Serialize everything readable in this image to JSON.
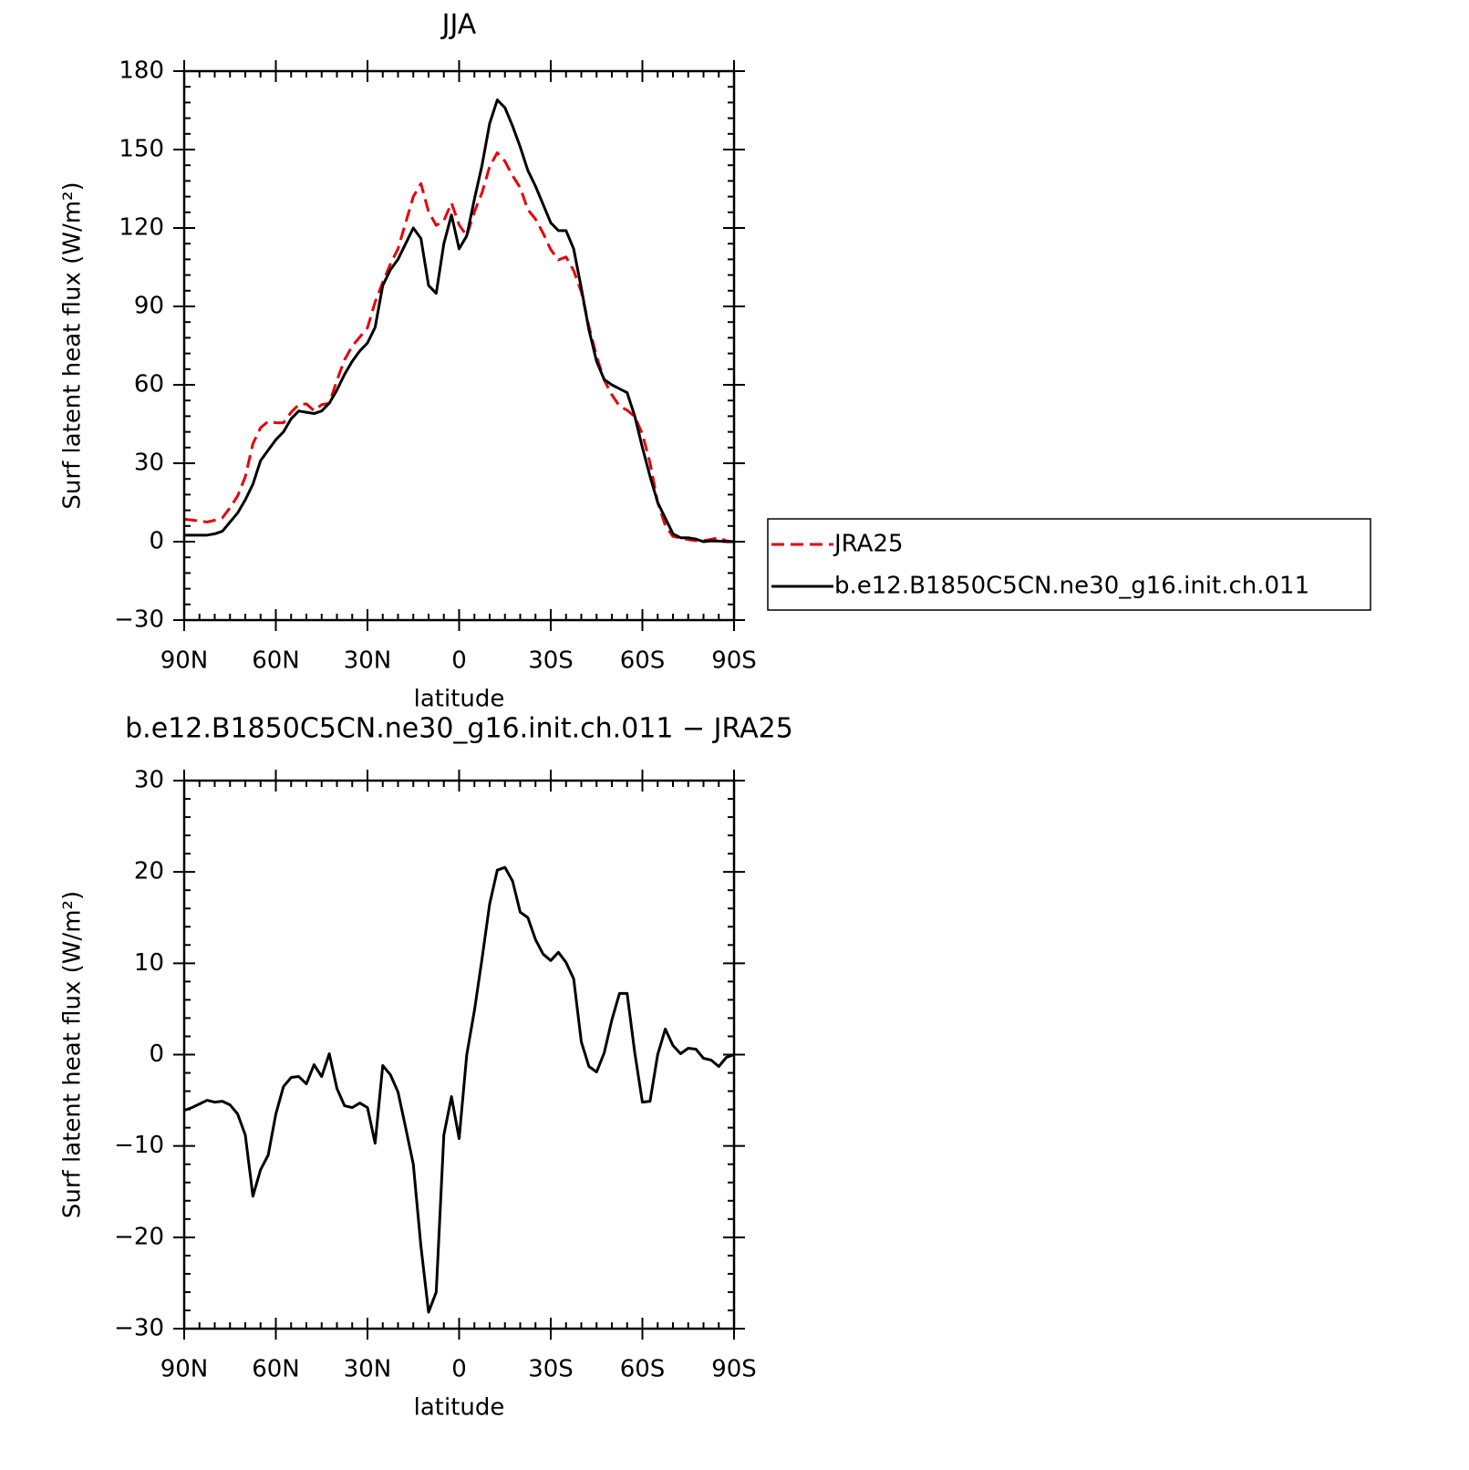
{
  "chart_data": [
    {
      "type": "line",
      "title": "JJA",
      "x_label": "latitude",
      "y_label": "Surf latent heat flux (W/m²)",
      "x": [
        90,
        87.5,
        85,
        82.5,
        80,
        77.5,
        75,
        72.5,
        70,
        67.5,
        65,
        62.5,
        60,
        57.5,
        55,
        52.5,
        50,
        47.5,
        45,
        42.5,
        40,
        37.5,
        35,
        32.5,
        30,
        27.5,
        25,
        22.5,
        20,
        17.5,
        15,
        12.5,
        10,
        7.5,
        5,
        2.5,
        0,
        -2.5,
        -5,
        -7.5,
        -10,
        -12.5,
        -15,
        -17.5,
        -20,
        -22.5,
        -25,
        -27.5,
        -30,
        -32.5,
        -35,
        -37.5,
        -40,
        -42.5,
        -45,
        -47.5,
        -50,
        -52.5,
        -55,
        -57.5,
        -60,
        -62.5,
        -65,
        -67.5,
        -70,
        -72.5,
        -75,
        -77.5,
        -80,
        -82.5,
        -85,
        -87.5,
        -90
      ],
      "series": [
        {
          "name": "JRA25",
          "color": "#e8000b",
          "line_style": "dashed",
          "values": [
            8.6,
            8.3,
            7.9,
            7.5,
            8.2,
            9.1,
            13,
            17.5,
            24.8,
            37.5,
            43.6,
            46,
            45.5,
            45.5,
            49.5,
            52.4,
            52.7,
            50.1,
            52.4,
            52.9,
            61.7,
            69.6,
            74.8,
            78.3,
            81.8,
            91.7,
            99.2,
            106.2,
            112.1,
            122,
            132,
            137,
            126.2,
            121,
            122.8,
            129.6,
            121.2,
            117,
            126.2,
            133.5,
            143.5,
            148.8,
            145.5,
            140,
            135.4,
            127,
            123.4,
            118,
            111.7,
            107.8,
            108.9,
            103.7,
            95.6,
            82.3,
            70.9,
            61.8,
            56.2,
            51.8,
            50.3,
            47.8,
            41.2,
            30.1,
            15,
            6.2,
            2,
            1.4,
            0.8,
            0.4,
            0.4,
            0.9,
            1.5,
            0.3,
            0
          ]
        },
        {
          "name": "b.e12.B1850C5CN.ne30_g16.init.ch.011",
          "color": "#000000",
          "line_style": "solid",
          "values": [
            2.5,
            2.5,
            2.5,
            2.5,
            3,
            4,
            7.5,
            11,
            16,
            22,
            31,
            35,
            39,
            42,
            47,
            50,
            49.5,
            49,
            50,
            53,
            58,
            64,
            69,
            73,
            76,
            82,
            98,
            104,
            108,
            114,
            120,
            116,
            98,
            95,
            114,
            125,
            112,
            117,
            131,
            144,
            160,
            169,
            166,
            159,
            151,
            142,
            136,
            129,
            122,
            119,
            119,
            112,
            97,
            81,
            69,
            62,
            60,
            58.5,
            57,
            48,
            36,
            25,
            15,
            9,
            3,
            1.5,
            1.5,
            1,
            0,
            0.3,
            0.2,
            0,
            0
          ]
        }
      ],
      "xlim": [
        90,
        -90
      ],
      "xticks": [
        {
          "value": 90,
          "label": "90N"
        },
        {
          "value": 60,
          "label": "60N"
        },
        {
          "value": 30,
          "label": "30N"
        },
        0,
        {
          "value": -30,
          "label": "30S"
        },
        {
          "value": -60,
          "label": "60S"
        },
        {
          "value": -90,
          "label": "90S"
        }
      ],
      "ylim": [
        -30,
        180
      ],
      "yticks": [
        {
          "value": -30,
          "label": "−30"
        },
        0,
        30,
        60,
        90,
        120,
        150,
        180
      ],
      "legend": "outside-right",
      "grid": false
    },
    {
      "type": "line",
      "title": "b.e12.B1850C5CN.ne30_g16.init.ch.011 − JRA25",
      "x_label": "latitude",
      "y_label": "Surf latent heat flux (W/m²)",
      "x": [
        90,
        87.5,
        85,
        82.5,
        80,
        77.5,
        75,
        72.5,
        70,
        67.5,
        65,
        62.5,
        60,
        57.5,
        55,
        52.5,
        50,
        47.5,
        45,
        42.5,
        40,
        37.5,
        35,
        32.5,
        30,
        27.5,
        25,
        22.5,
        20,
        17.5,
        15,
        12.5,
        10,
        7.5,
        5,
        2.5,
        0,
        -2.5,
        -5,
        -7.5,
        -10,
        -12.5,
        -15,
        -17.5,
        -20,
        -22.5,
        -25,
        -27.5,
        -30,
        -32.5,
        -35,
        -37.5,
        -40,
        -42.5,
        -45,
        -47.5,
        -50,
        -52.5,
        -55,
        -57.5,
        -60,
        -62.5,
        -65,
        -67.5,
        -70,
        -72.5,
        -75,
        -77.5,
        -80,
        -82.5,
        -85,
        -87.5,
        -90
      ],
      "values": [
        -6.1,
        -5.8,
        -5.4,
        -5,
        -5.2,
        -5.1,
        -5.5,
        -6.5,
        -8.8,
        -15.5,
        -12.6,
        -11,
        -6.5,
        -3.5,
        -2.5,
        -2.4,
        -3.2,
        -1.1,
        -2.4,
        0.1,
        -3.7,
        -5.6,
        -5.8,
        -5.3,
        -5.8,
        -9.7,
        -1.2,
        -2.2,
        -4.1,
        -8,
        -12,
        -21,
        -28.2,
        -26,
        -8.8,
        -4.6,
        -9.2,
        0,
        4.8,
        10.5,
        16.5,
        20.2,
        20.5,
        19,
        15.6,
        15,
        12.6,
        11,
        10.3,
        11.2,
        10.1,
        8.3,
        1.4,
        -1.3,
        -1.9,
        0.2,
        3.8,
        6.7,
        6.7,
        0.2,
        -5.2,
        -5.1,
        0,
        2.8,
        1,
        0.1,
        0.7,
        0.6,
        -0.4,
        -0.6,
        -1.3,
        -0.3,
        0
      ],
      "color": "#000000",
      "line_style": "solid",
      "xlim": [
        90,
        -90
      ],
      "xticks": [
        {
          "value": 90,
          "label": "90N"
        },
        {
          "value": 60,
          "label": "60N"
        },
        {
          "value": 30,
          "label": "30N"
        },
        0,
        {
          "value": -30,
          "label": "30S"
        },
        {
          "value": -60,
          "label": "60S"
        },
        {
          "value": -90,
          "label": "90S"
        }
      ],
      "ylim": [
        -30,
        30
      ],
      "yticks": [
        {
          "value": -30,
          "label": "−30"
        },
        {
          "value": -20,
          "label": "−20"
        },
        {
          "value": -10,
          "label": "−10"
        },
        0,
        10,
        20,
        30
      ],
      "grid": false
    }
  ]
}
